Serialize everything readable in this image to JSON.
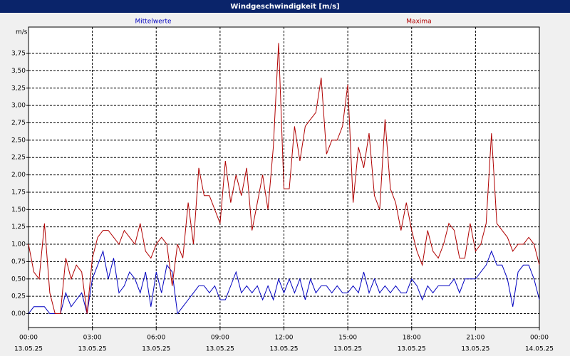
{
  "chart_data": {
    "type": "line",
    "title": "Windgeschwindigkeit [m/s]",
    "y_label": "m/s",
    "x": [
      0,
      0.25,
      0.5,
      0.75,
      1,
      1.25,
      1.5,
      1.75,
      2,
      2.25,
      2.5,
      2.75,
      3,
      3.25,
      3.5,
      3.75,
      4,
      4.25,
      4.5,
      4.75,
      5,
      5.25,
      5.5,
      5.75,
      6,
      6.25,
      6.5,
      6.75,
      7,
      7.25,
      7.5,
      7.75,
      8,
      8.25,
      8.5,
      8.75,
      9,
      9.25,
      9.5,
      9.75,
      10,
      10.25,
      10.5,
      10.75,
      11,
      11.25,
      11.5,
      11.75,
      12,
      12.25,
      12.5,
      12.75,
      13,
      13.25,
      13.5,
      13.75,
      14,
      14.25,
      14.5,
      14.75,
      15,
      15.25,
      15.5,
      15.75,
      16,
      16.25,
      16.5,
      16.75,
      17,
      17.25,
      17.5,
      17.75,
      18,
      18.25,
      18.5,
      18.75,
      19,
      19.25,
      19.5,
      19.75,
      20,
      20.25,
      20.5,
      20.75,
      21,
      21.25,
      21.5,
      21.75,
      22,
      22.25,
      22.5,
      22.75,
      23,
      23.25,
      23.5,
      23.75,
      24
    ],
    "series": [
      {
        "name": "Mittelwerte",
        "color": "#0000c0",
        "values": [
          0.0,
          0.1,
          0.1,
          0.1,
          0.0,
          0.0,
          0.0,
          0.3,
          0.1,
          0.2,
          0.3,
          0.0,
          0.5,
          0.7,
          0.9,
          0.5,
          0.8,
          0.3,
          0.4,
          0.6,
          0.5,
          0.3,
          0.6,
          0.1,
          0.6,
          0.3,
          0.7,
          0.6,
          0.0,
          0.1,
          0.2,
          0.3,
          0.4,
          0.4,
          0.3,
          0.4,
          0.2,
          0.2,
          0.4,
          0.6,
          0.3,
          0.4,
          0.3,
          0.4,
          0.2,
          0.4,
          0.2,
          0.5,
          0.3,
          0.5,
          0.3,
          0.5,
          0.2,
          0.5,
          0.3,
          0.4,
          0.4,
          0.3,
          0.4,
          0.3,
          0.3,
          0.4,
          0.3,
          0.6,
          0.3,
          0.5,
          0.3,
          0.4,
          0.3,
          0.4,
          0.3,
          0.3,
          0.5,
          0.4,
          0.2,
          0.4,
          0.3,
          0.4,
          0.4,
          0.4,
          0.5,
          0.3,
          0.5,
          0.5,
          0.5,
          0.6,
          0.7,
          0.9,
          0.7,
          0.7,
          0.5,
          0.1,
          0.6,
          0.7,
          0.7,
          0.5,
          0.2
        ]
      },
      {
        "name": "Maxima",
        "color": "#b00000",
        "values": [
          1.0,
          0.6,
          0.5,
          1.3,
          0.3,
          0.0,
          0.0,
          0.8,
          0.5,
          0.7,
          0.6,
          0.0,
          0.8,
          1.1,
          1.2,
          1.2,
          1.1,
          1.0,
          1.2,
          1.1,
          1.0,
          1.3,
          0.9,
          0.8,
          1.0,
          1.1,
          1.0,
          0.4,
          1.0,
          0.8,
          1.6,
          1.0,
          2.1,
          1.7,
          1.7,
          1.5,
          1.3,
          2.2,
          1.6,
          2.0,
          1.7,
          2.1,
          1.2,
          1.6,
          2.0,
          1.5,
          2.4,
          3.9,
          1.8,
          1.8,
          2.7,
          2.2,
          2.7,
          2.8,
          2.9,
          3.4,
          2.3,
          2.5,
          2.5,
          2.7,
          3.3,
          1.6,
          2.4,
          2.1,
          2.6,
          1.7,
          1.5,
          2.8,
          1.8,
          1.6,
          1.2,
          1.6,
          1.2,
          0.9,
          0.7,
          1.2,
          0.9,
          0.8,
          1.0,
          1.3,
          1.2,
          0.8,
          0.8,
          1.3,
          0.9,
          1.0,
          1.3,
          2.6,
          1.3,
          1.2,
          1.1,
          0.9,
          1.0,
          1.0,
          1.1,
          1.0,
          0.7
        ]
      }
    ],
    "xlim": [
      0,
      24
    ],
    "xticks": [
      {
        "value": 0,
        "label": "00:00"
      },
      {
        "value": 3,
        "label": "03:00"
      },
      {
        "value": 6,
        "label": "06:00"
      },
      {
        "value": 9,
        "label": "09:00"
      },
      {
        "value": 12,
        "label": "12:00"
      },
      {
        "value": 15,
        "label": "15:00"
      },
      {
        "value": 18,
        "label": "18:00"
      },
      {
        "value": 21,
        "label": "21:00"
      },
      {
        "value": 24,
        "label": "00:00"
      }
    ],
    "xtick_dates": [
      "13.05.25",
      "13.05.25",
      "13.05.25",
      "13.05.25",
      "13.05.25",
      "13.05.25",
      "13.05.25",
      "13.05.25",
      "14.05.25"
    ],
    "ylim": [
      -0.2,
      4.13
    ],
    "yticks": [
      {
        "value": 0,
        "label": "0,00"
      },
      {
        "value": 0.25,
        "label": "0,25"
      },
      {
        "value": 0.5,
        "label": "0,50"
      },
      {
        "value": 0.75,
        "label": "0,75"
      },
      {
        "value": 1,
        "label": "1,00"
      },
      {
        "value": 1.25,
        "label": "1,25"
      },
      {
        "value": 1.5,
        "label": "1,50"
      },
      {
        "value": 1.75,
        "label": "1,75"
      },
      {
        "value": 2,
        "label": "2,00"
      },
      {
        "value": 2.25,
        "label": "2,25"
      },
      {
        "value": 2.5,
        "label": "2,50"
      },
      {
        "value": 2.75,
        "label": "2,75"
      },
      {
        "value": 3,
        "label": "3,00"
      },
      {
        "value": 3.25,
        "label": "3,25"
      },
      {
        "value": 3.5,
        "label": "3,50"
      },
      {
        "value": 3.75,
        "label": "3,75"
      }
    ],
    "grid": true
  }
}
